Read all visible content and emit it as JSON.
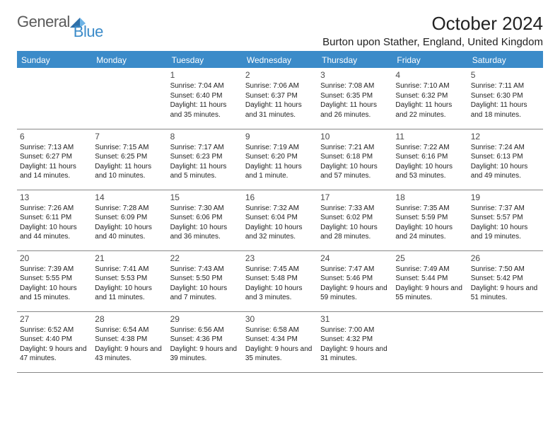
{
  "logo": {
    "general": "General",
    "blue": "Blue"
  },
  "header": {
    "title": "October 2024",
    "location": "Burton upon Stather, England, United Kingdom"
  },
  "colors": {
    "header_bg": "#3b8bc9",
    "header_text": "#ffffff",
    "border": "#888888",
    "text": "#222222",
    "logo_gray": "#5a5a5a",
    "logo_blue": "#3b8bc9",
    "background": "#ffffff"
  },
  "day_names": [
    "Sunday",
    "Monday",
    "Tuesday",
    "Wednesday",
    "Thursday",
    "Friday",
    "Saturday"
  ],
  "weeks": [
    [
      null,
      null,
      {
        "d": "1",
        "sunrise": "7:04 AM",
        "sunset": "6:40 PM",
        "daylight": "11 hours and 35 minutes."
      },
      {
        "d": "2",
        "sunrise": "7:06 AM",
        "sunset": "6:37 PM",
        "daylight": "11 hours and 31 minutes."
      },
      {
        "d": "3",
        "sunrise": "7:08 AM",
        "sunset": "6:35 PM",
        "daylight": "11 hours and 26 minutes."
      },
      {
        "d": "4",
        "sunrise": "7:10 AM",
        "sunset": "6:32 PM",
        "daylight": "11 hours and 22 minutes."
      },
      {
        "d": "5",
        "sunrise": "7:11 AM",
        "sunset": "6:30 PM",
        "daylight": "11 hours and 18 minutes."
      }
    ],
    [
      {
        "d": "6",
        "sunrise": "7:13 AM",
        "sunset": "6:27 PM",
        "daylight": "11 hours and 14 minutes."
      },
      {
        "d": "7",
        "sunrise": "7:15 AM",
        "sunset": "6:25 PM",
        "daylight": "11 hours and 10 minutes."
      },
      {
        "d": "8",
        "sunrise": "7:17 AM",
        "sunset": "6:23 PM",
        "daylight": "11 hours and 5 minutes."
      },
      {
        "d": "9",
        "sunrise": "7:19 AM",
        "sunset": "6:20 PM",
        "daylight": "11 hours and 1 minute."
      },
      {
        "d": "10",
        "sunrise": "7:21 AM",
        "sunset": "6:18 PM",
        "daylight": "10 hours and 57 minutes."
      },
      {
        "d": "11",
        "sunrise": "7:22 AM",
        "sunset": "6:16 PM",
        "daylight": "10 hours and 53 minutes."
      },
      {
        "d": "12",
        "sunrise": "7:24 AM",
        "sunset": "6:13 PM",
        "daylight": "10 hours and 49 minutes."
      }
    ],
    [
      {
        "d": "13",
        "sunrise": "7:26 AM",
        "sunset": "6:11 PM",
        "daylight": "10 hours and 44 minutes."
      },
      {
        "d": "14",
        "sunrise": "7:28 AM",
        "sunset": "6:09 PM",
        "daylight": "10 hours and 40 minutes."
      },
      {
        "d": "15",
        "sunrise": "7:30 AM",
        "sunset": "6:06 PM",
        "daylight": "10 hours and 36 minutes."
      },
      {
        "d": "16",
        "sunrise": "7:32 AM",
        "sunset": "6:04 PM",
        "daylight": "10 hours and 32 minutes."
      },
      {
        "d": "17",
        "sunrise": "7:33 AM",
        "sunset": "6:02 PM",
        "daylight": "10 hours and 28 minutes."
      },
      {
        "d": "18",
        "sunrise": "7:35 AM",
        "sunset": "5:59 PM",
        "daylight": "10 hours and 24 minutes."
      },
      {
        "d": "19",
        "sunrise": "7:37 AM",
        "sunset": "5:57 PM",
        "daylight": "10 hours and 19 minutes."
      }
    ],
    [
      {
        "d": "20",
        "sunrise": "7:39 AM",
        "sunset": "5:55 PM",
        "daylight": "10 hours and 15 minutes."
      },
      {
        "d": "21",
        "sunrise": "7:41 AM",
        "sunset": "5:53 PM",
        "daylight": "10 hours and 11 minutes."
      },
      {
        "d": "22",
        "sunrise": "7:43 AM",
        "sunset": "5:50 PM",
        "daylight": "10 hours and 7 minutes."
      },
      {
        "d": "23",
        "sunrise": "7:45 AM",
        "sunset": "5:48 PM",
        "daylight": "10 hours and 3 minutes."
      },
      {
        "d": "24",
        "sunrise": "7:47 AM",
        "sunset": "5:46 PM",
        "daylight": "9 hours and 59 minutes."
      },
      {
        "d": "25",
        "sunrise": "7:49 AM",
        "sunset": "5:44 PM",
        "daylight": "9 hours and 55 minutes."
      },
      {
        "d": "26",
        "sunrise": "7:50 AM",
        "sunset": "5:42 PM",
        "daylight": "9 hours and 51 minutes."
      }
    ],
    [
      {
        "d": "27",
        "sunrise": "6:52 AM",
        "sunset": "4:40 PM",
        "daylight": "9 hours and 47 minutes."
      },
      {
        "d": "28",
        "sunrise": "6:54 AM",
        "sunset": "4:38 PM",
        "daylight": "9 hours and 43 minutes."
      },
      {
        "d": "29",
        "sunrise": "6:56 AM",
        "sunset": "4:36 PM",
        "daylight": "9 hours and 39 minutes."
      },
      {
        "d": "30",
        "sunrise": "6:58 AM",
        "sunset": "4:34 PM",
        "daylight": "9 hours and 35 minutes."
      },
      {
        "d": "31",
        "sunrise": "7:00 AM",
        "sunset": "4:32 PM",
        "daylight": "9 hours and 31 minutes."
      },
      null,
      null
    ]
  ],
  "labels": {
    "sunrise": "Sunrise:",
    "sunset": "Sunset:",
    "daylight": "Daylight:"
  }
}
